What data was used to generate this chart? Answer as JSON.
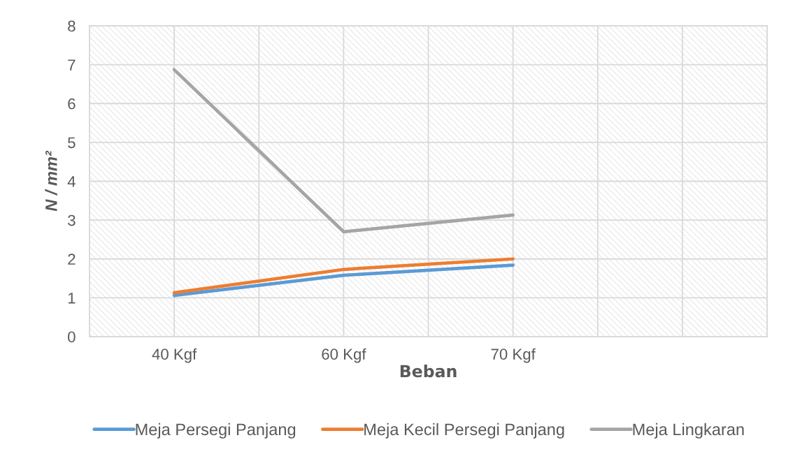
{
  "chart_data": {
    "type": "line",
    "xlabel": "Beban",
    "ylabel": "N / mm²",
    "categories": [
      "40 Kgf",
      "60 Kgf",
      "70 Kgf",
      null
    ],
    "series": [
      {
        "name": "Meja Persegi Panjang",
        "color": "#5b9bd5",
        "values": [
          1.06,
          1.58,
          1.84,
          null
        ]
      },
      {
        "name": "Meja Kecil Persegi Panjang",
        "color": "#ed7d31",
        "values": [
          1.13,
          1.73,
          2.0,
          null
        ]
      },
      {
        "name": "Meja Lingkaran",
        "color": "#a5a5a5",
        "values": [
          6.87,
          2.7,
          3.13,
          null
        ]
      }
    ],
    "ylim": [
      0,
      8
    ],
    "yticks": [
      0,
      1,
      2,
      3,
      4,
      5,
      6,
      7,
      8
    ],
    "grid": true,
    "legend": "bottom",
    "line_style": "solid"
  }
}
